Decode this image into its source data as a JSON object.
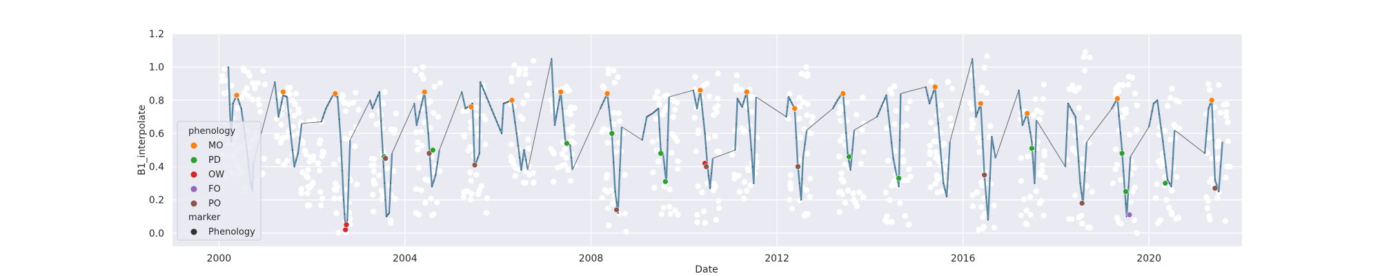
{
  "chart_data": {
    "type": "line",
    "xlabel": "Date",
    "ylabel": "B1_interpolate",
    "xlim": [
      1999.0,
      2022.0
    ],
    "ylim": [
      -0.08,
      1.2
    ],
    "x_ticks": [
      2000,
      2004,
      2008,
      2012,
      2016,
      2020
    ],
    "x_tick_labels": [
      "2000",
      "2004",
      "2008",
      "2012",
      "2016",
      "2020"
    ],
    "y_ticks": [
      0.0,
      0.2,
      0.4,
      0.6,
      0.8,
      1.0,
      1.2
    ],
    "y_tick_labels": [
      "0.0",
      "0.2",
      "0.4",
      "0.6",
      "0.8",
      "1.0",
      "1.2"
    ],
    "grid": true,
    "background_color": "#eaeaf2",
    "legend": {
      "placement": "lower-left",
      "hue_title": "phenology",
      "hue_entries": [
        {
          "label": "MO",
          "color": "#ff7f0e"
        },
        {
          "label": "PD",
          "color": "#2ca02c"
        },
        {
          "label": "OW",
          "color": "#d62728"
        },
        {
          "label": "FO",
          "color": "#9467bd"
        },
        {
          "label": "PO",
          "color": "#8c564b"
        }
      ],
      "style_title": "marker",
      "style_entries": [
        {
          "label": "Phenology",
          "color": "#333333"
        }
      ]
    },
    "series_colors": {
      "observations": "#ffffff",
      "interpolated": "#5b8aa6",
      "connector": "#666666"
    },
    "interpolated_knots": [
      [
        2000.2,
        1.0
      ],
      [
        2000.26,
        0.55
      ],
      [
        2000.3,
        0.78
      ],
      [
        2000.38,
        0.83
      ],
      [
        2000.48,
        0.75
      ],
      [
        2000.6,
        0.5
      ],
      [
        2000.68,
        0.3
      ],
      [
        2000.72,
        0.26
      ],
      [
        2000.74,
        0.42
      ],
      [
        2001.2,
        0.91
      ],
      [
        2001.28,
        0.7
      ],
      [
        2001.38,
        0.83
      ],
      [
        2001.46,
        0.82
      ],
      [
        2001.54,
        0.6
      ],
      [
        2001.62,
        0.4
      ],
      [
        2001.7,
        0.48
      ],
      [
        2001.78,
        0.66
      ],
      [
        2002.2,
        0.67
      ],
      [
        2002.3,
        0.75
      ],
      [
        2002.45,
        0.83
      ],
      [
        2002.55,
        0.82
      ],
      [
        2002.62,
        0.55
      ],
      [
        2002.68,
        0.2
      ],
      [
        2002.72,
        0.03
      ],
      [
        2002.76,
        0.08
      ],
      [
        2002.82,
        0.56
      ],
      [
        2003.25,
        0.8
      ],
      [
        2003.3,
        0.75
      ],
      [
        2003.45,
        0.85
      ],
      [
        2003.52,
        0.5
      ],
      [
        2003.56,
        0.3
      ],
      [
        2003.6,
        0.1
      ],
      [
        2003.66,
        0.12
      ],
      [
        2003.72,
        0.48
      ],
      [
        2004.2,
        0.78
      ],
      [
        2004.25,
        0.65
      ],
      [
        2004.42,
        0.85
      ],
      [
        2004.5,
        0.6
      ],
      [
        2004.58,
        0.28
      ],
      [
        2004.66,
        0.35
      ],
      [
        2004.74,
        0.5
      ],
      [
        2005.22,
        0.85
      ],
      [
        2005.3,
        0.75
      ],
      [
        2005.45,
        0.78
      ],
      [
        2005.5,
        0.4
      ],
      [
        2005.6,
        0.48
      ],
      [
        2005.62,
        0.91
      ],
      [
        2006.08,
        0.6
      ],
      [
        2006.12,
        0.78
      ],
      [
        2006.3,
        0.8
      ],
      [
        2006.4,
        0.6
      ],
      [
        2006.5,
        0.38
      ],
      [
        2006.56,
        0.5
      ],
      [
        2006.64,
        0.38
      ],
      [
        2007.15,
        1.05
      ],
      [
        2007.22,
        0.65
      ],
      [
        2007.35,
        0.85
      ],
      [
        2007.45,
        0.55
      ],
      [
        2007.55,
        0.53
      ],
      [
        2007.6,
        0.38
      ],
      [
        2008.2,
        0.75
      ],
      [
        2008.35,
        0.84
      ],
      [
        2008.45,
        0.6
      ],
      [
        2008.52,
        0.25
      ],
      [
        2008.58,
        0.12
      ],
      [
        2008.66,
        0.64
      ],
      [
        2009.1,
        0.56
      ],
      [
        2009.2,
        0.7
      ],
      [
        2009.32,
        0.72
      ],
      [
        2009.45,
        0.75
      ],
      [
        2009.5,
        0.5
      ],
      [
        2009.55,
        0.48
      ],
      [
        2009.62,
        0.3
      ],
      [
        2009.68,
        0.82
      ],
      [
        2010.2,
        0.86
      ],
      [
        2010.28,
        0.75
      ],
      [
        2010.35,
        0.86
      ],
      [
        2010.45,
        0.6
      ],
      [
        2010.5,
        0.42
      ],
      [
        2010.56,
        0.27
      ],
      [
        2010.62,
        0.45
      ],
      [
        2011.1,
        0.5
      ],
      [
        2011.15,
        0.81
      ],
      [
        2011.25,
        0.76
      ],
      [
        2011.35,
        0.85
      ],
      [
        2011.45,
        0.5
      ],
      [
        2011.5,
        0.3
      ],
      [
        2011.55,
        0.82
      ],
      [
        2012.2,
        0.7
      ],
      [
        2012.25,
        0.82
      ],
      [
        2012.38,
        0.75
      ],
      [
        2012.45,
        0.4
      ],
      [
        2012.52,
        0.2
      ],
      [
        2012.56,
        0.45
      ],
      [
        2012.64,
        0.62
      ],
      [
        2013.2,
        0.75
      ],
      [
        2013.3,
        0.8
      ],
      [
        2013.42,
        0.85
      ],
      [
        2013.52,
        0.48
      ],
      [
        2013.58,
        0.38
      ],
      [
        2013.66,
        0.62
      ],
      [
        2014.15,
        0.7
      ],
      [
        2014.35,
        0.83
      ],
      [
        2014.5,
        0.45
      ],
      [
        2014.62,
        0.28
      ],
      [
        2014.66,
        0.84
      ],
      [
        2015.2,
        0.88
      ],
      [
        2015.28,
        0.78
      ],
      [
        2015.4,
        0.88
      ],
      [
        2015.5,
        0.55
      ],
      [
        2015.58,
        0.3
      ],
      [
        2015.65,
        0.22
      ],
      [
        2015.72,
        0.55
      ],
      [
        2016.2,
        1.05
      ],
      [
        2016.28,
        0.7
      ],
      [
        2016.38,
        0.78
      ],
      [
        2016.46,
        0.35
      ],
      [
        2016.54,
        0.08
      ],
      [
        2016.62,
        0.58
      ],
      [
        2016.7,
        0.45
      ],
      [
        2017.2,
        0.86
      ],
      [
        2017.28,
        0.65
      ],
      [
        2017.38,
        0.72
      ],
      [
        2017.48,
        0.55
      ],
      [
        2017.54,
        0.3
      ],
      [
        2017.58,
        0.68
      ],
      [
        2018.2,
        0.4
      ],
      [
        2018.26,
        0.78
      ],
      [
        2018.42,
        0.7
      ],
      [
        2018.52,
        0.3
      ],
      [
        2018.58,
        0.18
      ],
      [
        2018.66,
        0.55
      ],
      [
        2019.2,
        0.75
      ],
      [
        2019.32,
        0.81
      ],
      [
        2019.42,
        0.5
      ],
      [
        2019.48,
        0.25
      ],
      [
        2019.52,
        0.1
      ],
      [
        2019.6,
        0.46
      ],
      [
        2020.0,
        0.64
      ],
      [
        2020.1,
        0.78
      ],
      [
        2020.18,
        0.8
      ],
      [
        2020.3,
        0.55
      ],
      [
        2020.4,
        0.32
      ],
      [
        2020.48,
        0.28
      ],
      [
        2020.55,
        0.62
      ],
      [
        2021.2,
        0.48
      ],
      [
        2021.28,
        0.75
      ],
      [
        2021.35,
        0.8
      ],
      [
        2021.42,
        0.32
      ],
      [
        2021.5,
        0.25
      ],
      [
        2021.58,
        0.55
      ]
    ],
    "connector_segments": [
      [
        [
          2000.74,
          0.42
        ],
        [
          2001.2,
          0.91
        ]
      ],
      [
        [
          2001.78,
          0.66
        ],
        [
          2002.2,
          0.67
        ]
      ],
      [
        [
          2002.82,
          0.56
        ],
        [
          2003.25,
          0.8
        ]
      ],
      [
        [
          2003.72,
          0.48
        ],
        [
          2004.2,
          0.78
        ]
      ],
      [
        [
          2004.74,
          0.5
        ],
        [
          2005.22,
          0.85
        ]
      ],
      [
        [
          2006.64,
          0.38
        ],
        [
          2007.15,
          1.05
        ]
      ],
      [
        [
          2007.6,
          0.38
        ],
        [
          2008.2,
          0.75
        ]
      ],
      [
        [
          2008.66,
          0.64
        ],
        [
          2009.1,
          0.56
        ]
      ],
      [
        [
          2009.68,
          0.82
        ],
        [
          2010.2,
          0.86
        ]
      ],
      [
        [
          2010.62,
          0.45
        ],
        [
          2011.1,
          0.5
        ]
      ],
      [
        [
          2011.55,
          0.82
        ],
        [
          2012.2,
          0.7
        ]
      ],
      [
        [
          2012.64,
          0.62
        ],
        [
          2013.2,
          0.75
        ]
      ],
      [
        [
          2013.66,
          0.62
        ],
        [
          2014.15,
          0.7
        ]
      ],
      [
        [
          2014.66,
          0.84
        ],
        [
          2015.2,
          0.88
        ]
      ],
      [
        [
          2015.72,
          0.55
        ],
        [
          2016.2,
          1.05
        ]
      ],
      [
        [
          2016.7,
          0.45
        ],
        [
          2017.2,
          0.86
        ]
      ],
      [
        [
          2017.58,
          0.68
        ],
        [
          2018.2,
          0.4
        ]
      ],
      [
        [
          2018.66,
          0.55
        ],
        [
          2019.2,
          0.75
        ]
      ],
      [
        [
          2019.6,
          0.46
        ],
        [
          2020.0,
          0.64
        ]
      ],
      [
        [
          2020.55,
          0.62
        ],
        [
          2021.2,
          0.48
        ]
      ]
    ],
    "observation_clusters": [
      [
        2000.3,
        0.3,
        1.0
      ],
      [
        2000.75,
        0.25,
        1.0
      ],
      [
        2001.5,
        0.4,
        0.88
      ],
      [
        2002.0,
        0.15,
        0.7
      ],
      [
        2002.75,
        0.0,
        0.85
      ],
      [
        2003.55,
        0.0,
        0.9
      ],
      [
        2004.5,
        0.1,
        1.0
      ],
      [
        2005.5,
        0.12,
        0.9
      ],
      [
        2006.5,
        0.3,
        1.05
      ],
      [
        2007.4,
        0.3,
        0.9
      ],
      [
        2008.5,
        0.0,
        1.0
      ],
      [
        2009.6,
        0.1,
        0.88
      ],
      [
        2010.5,
        0.05,
        1.0
      ],
      [
        2011.3,
        0.2,
        1.0
      ],
      [
        2012.5,
        0.1,
        1.02
      ],
      [
        2013.6,
        0.1,
        0.85
      ],
      [
        2014.6,
        0.05,
        0.92
      ],
      [
        2015.5,
        0.15,
        0.92
      ],
      [
        2016.4,
        0.0,
        1.08
      ],
      [
        2017.5,
        0.05,
        0.92
      ],
      [
        2018.5,
        0.0,
        1.12
      ],
      [
        2019.5,
        0.0,
        0.95
      ],
      [
        2020.4,
        0.05,
        0.88
      ],
      [
        2021.5,
        0.05,
        0.93
      ]
    ],
    "phenology_points": [
      {
        "x": 2000.38,
        "y": 0.83,
        "class": "MO"
      },
      {
        "x": 2001.38,
        "y": 0.85,
        "class": "MO"
      },
      {
        "x": 2002.5,
        "y": 0.84,
        "class": "MO"
      },
      {
        "x": 2002.72,
        "y": 0.02,
        "class": "OW"
      },
      {
        "x": 2002.74,
        "y": 0.05,
        "class": "OW"
      },
      {
        "x": 2003.55,
        "y": 0.46,
        "class": "PD"
      },
      {
        "x": 2003.58,
        "y": 0.45,
        "class": "PO"
      },
      {
        "x": 2004.42,
        "y": 0.85,
        "class": "MO"
      },
      {
        "x": 2004.52,
        "y": 0.48,
        "class": "PO"
      },
      {
        "x": 2004.6,
        "y": 0.5,
        "class": "PD"
      },
      {
        "x": 2005.42,
        "y": 0.76,
        "class": "MO"
      },
      {
        "x": 2005.5,
        "y": 0.41,
        "class": "PO"
      },
      {
        "x": 2006.3,
        "y": 0.8,
        "class": "MO"
      },
      {
        "x": 2007.35,
        "y": 0.85,
        "class": "MO"
      },
      {
        "x": 2007.48,
        "y": 0.54,
        "class": "PD"
      },
      {
        "x": 2008.35,
        "y": 0.84,
        "class": "MO"
      },
      {
        "x": 2008.45,
        "y": 0.6,
        "class": "PD"
      },
      {
        "x": 2008.55,
        "y": 0.14,
        "class": "PO"
      },
      {
        "x": 2009.5,
        "y": 0.48,
        "class": "PD"
      },
      {
        "x": 2009.6,
        "y": 0.31,
        "class": "PD"
      },
      {
        "x": 2010.35,
        "y": 0.86,
        "class": "MO"
      },
      {
        "x": 2010.45,
        "y": 0.42,
        "class": "OW"
      },
      {
        "x": 2010.48,
        "y": 0.4,
        "class": "PO"
      },
      {
        "x": 2011.35,
        "y": 0.85,
        "class": "MO"
      },
      {
        "x": 2012.38,
        "y": 0.75,
        "class": "MO"
      },
      {
        "x": 2012.45,
        "y": 0.4,
        "class": "PO"
      },
      {
        "x": 2013.42,
        "y": 0.84,
        "class": "MO"
      },
      {
        "x": 2013.55,
        "y": 0.46,
        "class": "PD"
      },
      {
        "x": 2014.62,
        "y": 0.33,
        "class": "PD"
      },
      {
        "x": 2015.4,
        "y": 0.88,
        "class": "MO"
      },
      {
        "x": 2016.38,
        "y": 0.78,
        "class": "MO"
      },
      {
        "x": 2016.46,
        "y": 0.35,
        "class": "PO"
      },
      {
        "x": 2017.38,
        "y": 0.72,
        "class": "MO"
      },
      {
        "x": 2017.48,
        "y": 0.51,
        "class": "PD"
      },
      {
        "x": 2018.56,
        "y": 0.18,
        "class": "PO"
      },
      {
        "x": 2019.32,
        "y": 0.81,
        "class": "MO"
      },
      {
        "x": 2019.42,
        "y": 0.48,
        "class": "PD"
      },
      {
        "x": 2019.5,
        "y": 0.25,
        "class": "PD"
      },
      {
        "x": 2019.58,
        "y": 0.11,
        "class": "FO"
      },
      {
        "x": 2020.35,
        "y": 0.3,
        "class": "PD"
      },
      {
        "x": 2021.35,
        "y": 0.8,
        "class": "MO"
      },
      {
        "x": 2021.42,
        "y": 0.27,
        "class": "PO"
      }
    ]
  }
}
